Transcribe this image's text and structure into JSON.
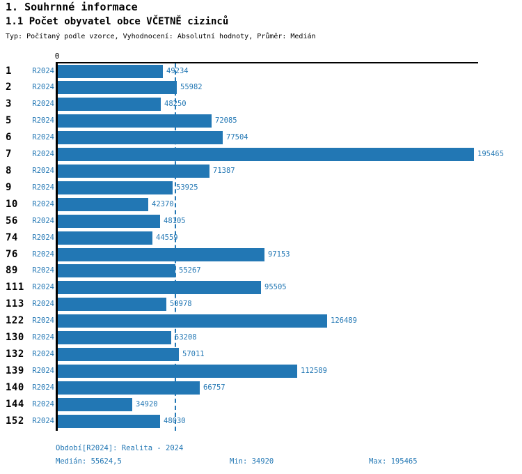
{
  "header": {
    "title1": "1. Souhrnné informace",
    "title2": "1.1 Počet obyvatel obce VČETNĚ cizinců",
    "meta": "Typ: Počítaný podle vzorce, Vyhodnocení: Absolutní hodnoty, Průměr: Medián"
  },
  "chart_data": {
    "type": "bar",
    "orientation": "horizontal",
    "title": "1.1 Počet obyvatel obce VČETNĚ cizinců",
    "axis_origin_label": "0",
    "series_label": "R2024",
    "categories": [
      "1",
      "2",
      "3",
      "5",
      "6",
      "7",
      "8",
      "9",
      "10",
      "56",
      "74",
      "76",
      "89",
      "111",
      "113",
      "122",
      "130",
      "132",
      "139",
      "140",
      "144",
      "152"
    ],
    "values": [
      49234,
      55982,
      48250,
      72085,
      77504,
      195465,
      71387,
      53925,
      42370,
      48105,
      44559,
      97153,
      55267,
      95505,
      50978,
      126489,
      53208,
      57011,
      112589,
      66757,
      34920,
      48030
    ],
    "xlim": [
      0,
      197800
    ],
    "median": 55624.5,
    "min": 34920,
    "max": 195465,
    "bar_color": "#2277b4",
    "median_line_color": "#2277b4",
    "grid": false,
    "value_labels": true,
    "legend_position": "none"
  },
  "footer": {
    "period": "Období[R2024]: Realita - 2024",
    "median": "Medián: 55624,5",
    "min": "Min: 34920",
    "max": "Max: 195465"
  }
}
